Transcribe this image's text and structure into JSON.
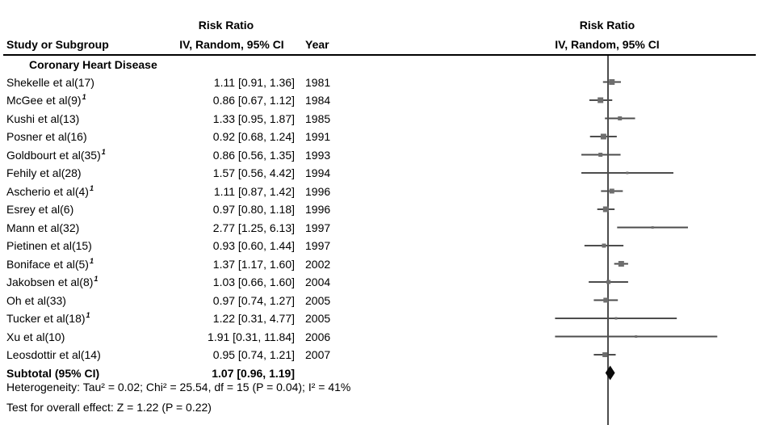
{
  "header": {
    "left_effect_title": "Risk Ratio",
    "study_col": "Study or Subgroup",
    "effect_col": "IV, Random, 95% CI",
    "year_col": "Year",
    "right_effect_title": "Risk Ratio",
    "right_effect_subtitle": "IV, Random, 95% CI"
  },
  "colors": {
    "line": "#4d4d4d",
    "marker": "#6e6e6e",
    "diamond": "#0a0a0a",
    "rule": "#000000"
  },
  "chart_data": {
    "type": "forest",
    "effect_measure": "Risk Ratio",
    "model": "IV, Random, 95% CI",
    "scale": "log",
    "null_value": 1,
    "subgroup": "Coronary Heart Disease",
    "studies": [
      {
        "name": "Shekelle et al(17)",
        "sup": "",
        "rr": 1.11,
        "low": 0.91,
        "high": 1.36,
        "label": "1.11 [0.91, 1.36]",
        "year": "1981",
        "marker": 7
      },
      {
        "name": "McGee et al(9)",
        "sup": "1",
        "rr": 0.86,
        "low": 0.67,
        "high": 1.12,
        "label": "0.86 [0.67, 1.12]",
        "year": "1984",
        "marker": 7
      },
      {
        "name": "Kushi et al(13)",
        "sup": "",
        "rr": 1.33,
        "low": 0.95,
        "high": 1.87,
        "label": "1.33 [0.95, 1.87]",
        "year": "1985",
        "marker": 5
      },
      {
        "name": "Posner et al(16)",
        "sup": "",
        "rr": 0.92,
        "low": 0.68,
        "high": 1.24,
        "label": "0.92 [0.68, 1.24]",
        "year": "1991",
        "marker": 7
      },
      {
        "name": "Goldbourt et al(35)",
        "sup": "1",
        "rr": 0.86,
        "low": 0.56,
        "high": 1.35,
        "label": "0.86 [0.56, 1.35]",
        "year": "1993",
        "marker": 5
      },
      {
        "name": "Fehily et al(28)",
        "sup": "",
        "rr": 1.57,
        "low": 0.56,
        "high": 4.42,
        "label": "1.57 [0.56, 4.42]",
        "year": "1994",
        "marker": 3
      },
      {
        "name": "Ascherio et al(4)",
        "sup": "1",
        "rr": 1.11,
        "low": 0.87,
        "high": 1.42,
        "label": "1.11 [0.87, 1.42]",
        "year": "1996",
        "marker": 6
      },
      {
        "name": "Esrey et al(6)",
        "sup": "",
        "rr": 0.97,
        "low": 0.8,
        "high": 1.18,
        "label": "0.97 [0.80, 1.18]",
        "year": "1996",
        "marker": 7
      },
      {
        "name": "Mann et al(32)",
        "sup": "",
        "rr": 2.77,
        "low": 1.25,
        "high": 6.13,
        "label": "2.77 [1.25, 6.13]",
        "year": "1997",
        "marker": 3
      },
      {
        "name": "Pietinen et al(15)",
        "sup": "",
        "rr": 0.93,
        "low": 0.6,
        "high": 1.44,
        "label": "0.93 [0.60, 1.44]",
        "year": "1997",
        "marker": 5
      },
      {
        "name": "Boniface et al(5)",
        "sup": "1",
        "rr": 1.37,
        "low": 1.17,
        "high": 1.6,
        "label": "1.37 [1.17, 1.60]",
        "year": "2002",
        "marker": 7
      },
      {
        "name": "Jakobsen et al(8)",
        "sup": "1",
        "rr": 1.03,
        "low": 0.66,
        "high": 1.6,
        "label": "1.03 [0.66, 1.60]",
        "year": "2004",
        "marker": 5
      },
      {
        "name": "Oh et al(33)",
        "sup": "",
        "rr": 0.97,
        "low": 0.74,
        "high": 1.27,
        "label": "0.97 [0.74, 1.27]",
        "year": "2005",
        "marker": 6
      },
      {
        "name": "Tucker et al(18)",
        "sup": "1",
        "rr": 1.22,
        "low": 0.31,
        "high": 4.77,
        "label": "1.22 [0.31, 4.77]",
        "year": "2005",
        "marker": 3
      },
      {
        "name": "Xu et al(10)",
        "sup": "",
        "rr": 1.91,
        "low": 0.31,
        "high": 11.84,
        "label": "1.91 [0.31, 11.84]",
        "year": "2006",
        "marker": 3
      },
      {
        "name": "Leosdottir et al(14)",
        "sup": "",
        "rr": 0.95,
        "low": 0.74,
        "high": 1.21,
        "label": "0.95 [0.74, 1.21]",
        "year": "2007",
        "marker": 6
      }
    ],
    "subtotal": {
      "label": "Subtotal (95% CI)",
      "rr": 1.07,
      "low": 0.96,
      "high": 1.19,
      "value_label": "1.07 [0.96, 1.19]"
    },
    "heterogeneity": "Heterogeneity: Tau² = 0.02; Chi² = 25.54, df = 15 (P = 0.04); I² = 41%",
    "overall_effect": "Test for overall effect: Z = 1.22 (P = 0.22)"
  }
}
